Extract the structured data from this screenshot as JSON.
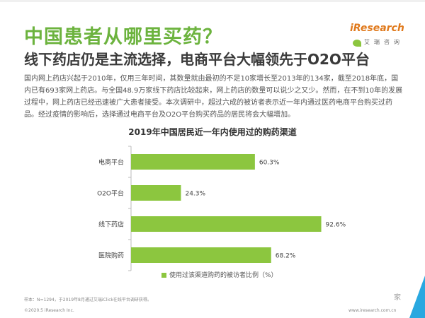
{
  "header": {
    "title": "中国患者从哪里买药？",
    "subtitle": "线下药店仍是主流选择，电商平台大幅领先于O2O平台"
  },
  "logo": {
    "brand": "iResearch",
    "cn": "艾瑞咨询"
  },
  "paragraph": "国内网上药店兴起于2010年，仅用三年时间，其数量就由最初的不足10家增长至2013年的134家，截至2018年底，国内已有693家网上药店。与全国48.9万家线下药店比较起来，网上药店的数量可以说少之又少。然而，在不到10年的发展过程中，网上药店已经迅速被广大患者接受。本次调研中，超过六成的被访者表示近一年内通过医药电商平台购买过药品。经过疫情的影响后，选择通过电商平台及O2O平台购买药品的居民将会大幅增加。",
  "chart_data": {
    "type": "bar",
    "orientation": "horizontal",
    "title": "2019年中国居民近一年内使用过的购药渠道",
    "categories": [
      "电商平台",
      "O2O平台",
      "线下药店",
      "医院购药"
    ],
    "values": [
      60.3,
      24.3,
      92.6,
      68.2
    ],
    "value_labels": [
      "60.3%",
      "24.3%",
      "92.6%",
      "68.2%"
    ],
    "legend": "使用过该渠道购药的被访者比例（%）",
    "legend_position": "bottom",
    "xlim": [
      0,
      100
    ],
    "grid": false,
    "bar_color": "#8cc63f"
  },
  "footer": {
    "note": "样本：N=1294，于2019年8月通过艾瑞iClick在线平台调研获得。",
    "copyright": "©2020.5 iResearch Inc.",
    "url": "www.iresearch.com.cn",
    "corner_mark": "家"
  },
  "colors": {
    "accent": "#6cb33e",
    "bar": "#8cc63f",
    "corner": "#29a8e0"
  }
}
